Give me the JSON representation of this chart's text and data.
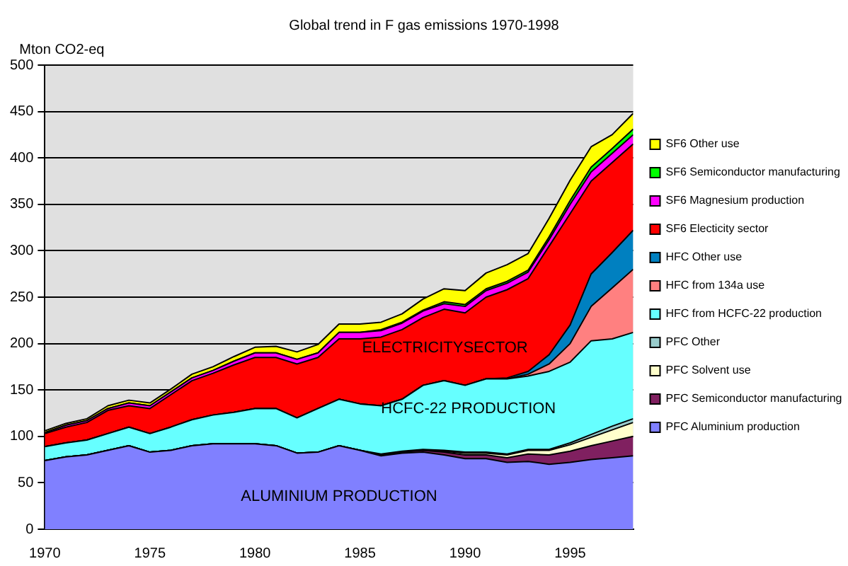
{
  "chart_data": {
    "type": "area",
    "stacked": true,
    "title": "Global trend in F gas emissions 1970-1998",
    "ylabel": "Mton CO2-eq",
    "x": [
      1970,
      1971,
      1972,
      1973,
      1974,
      1975,
      1976,
      1977,
      1978,
      1979,
      1980,
      1981,
      1982,
      1983,
      1984,
      1985,
      1986,
      1987,
      1988,
      1989,
      1990,
      1991,
      1992,
      1993,
      1994,
      1995,
      1996,
      1997,
      1998
    ],
    "xlim": [
      1970,
      1998
    ],
    "xticks": [
      1970,
      1975,
      1980,
      1985,
      1990,
      1995
    ],
    "ylim": [
      0,
      500
    ],
    "yticks": [
      0,
      50,
      100,
      150,
      200,
      250,
      300,
      350,
      400,
      450,
      500
    ],
    "grid": "y",
    "legend": "right",
    "series": [
      {
        "name": "PFC Aluminium production",
        "color": "#8080ff",
        "values": [
          74,
          78,
          80,
          85,
          90,
          83,
          85,
          90,
          92,
          92,
          92,
          90,
          82,
          83,
          90,
          85,
          79,
          82,
          83,
          80,
          76,
          76,
          72,
          73,
          70,
          72,
          75,
          77,
          79
        ]
      },
      {
        "name": "PFC Semiconductor manufacturing",
        "color": "#802060",
        "values": [
          0,
          0,
          0,
          0,
          0,
          0,
          0,
          0,
          0,
          0,
          0,
          0,
          0,
          0,
          0,
          0,
          1,
          1,
          2,
          3,
          4,
          4,
          5,
          8,
          10,
          12,
          15,
          18,
          21
        ]
      },
      {
        "name": "PFC Solvent use",
        "color": "#ffffcc",
        "values": [
          0,
          0,
          0,
          0,
          0,
          0,
          0,
          0,
          0,
          0,
          0,
          0,
          0,
          0,
          0,
          0,
          0,
          0,
          0,
          1,
          2,
          2,
          3,
          4,
          5,
          7,
          9,
          12,
          15
        ]
      },
      {
        "name": "PFC Other",
        "color": "#99cccc",
        "values": [
          0,
          0,
          0,
          0,
          0,
          0,
          0,
          0,
          0,
          0,
          0,
          0,
          0,
          0,
          0,
          0,
          1,
          1,
          1,
          1,
          1,
          1,
          1,
          1,
          1,
          2,
          3,
          4,
          4
        ]
      },
      {
        "name": "HFC from HCFC-22 production",
        "color": "#66ffff",
        "values": [
          15,
          15,
          16,
          18,
          20,
          20,
          25,
          28,
          31,
          34,
          38,
          40,
          38,
          47,
          50,
          50,
          52,
          56,
          69,
          75,
          72,
          79,
          81,
          79,
          84,
          87,
          101,
          94,
          93
        ]
      },
      {
        "name": "HFC from 134a use",
        "color": "#ff8080",
        "values": [
          0,
          0,
          0,
          0,
          0,
          0,
          0,
          0,
          0,
          0,
          0,
          0,
          0,
          0,
          0,
          0,
          0,
          0,
          0,
          0,
          0,
          0,
          0,
          2,
          8,
          20,
          37,
          55,
          68
        ]
      },
      {
        "name": "HFC Other use",
        "color": "#0080c0",
        "values": [
          0,
          0,
          0,
          0,
          0,
          0,
          0,
          0,
          0,
          0,
          0,
          0,
          0,
          0,
          0,
          0,
          0,
          0,
          0,
          0,
          0,
          0,
          1,
          3,
          10,
          20,
          35,
          38,
          42
        ]
      },
      {
        "name": "SF6 Electicity sector",
        "color": "#ff0000",
        "values": [
          14,
          17,
          19,
          25,
          23,
          27,
          35,
          42,
          45,
          51,
          55,
          55,
          58,
          55,
          65,
          70,
          74,
          75,
          73,
          77,
          78,
          88,
          95,
          100,
          117,
          120,
          100,
          97,
          93
        ]
      },
      {
        "name": "SF6 Magnesium production",
        "color": "#ff00ff",
        "values": [
          1,
          2,
          2,
          2,
          3,
          3,
          3,
          3,
          3,
          4,
          5,
          5,
          5,
          5,
          7,
          7,
          7,
          7,
          7,
          6,
          7,
          7,
          7,
          7,
          7,
          10,
          10,
          10,
          10
        ]
      },
      {
        "name": "SF6 Semiconductor manufacturing",
        "color": "#00ff00",
        "values": [
          0,
          0,
          0,
          0,
          0,
          0,
          0,
          0,
          0,
          0,
          0,
          0,
          0,
          0,
          0,
          0,
          1,
          1,
          1,
          2,
          2,
          2,
          2,
          2,
          3,
          4,
          5,
          5,
          6
        ]
      },
      {
        "name": "SF6 Other use",
        "color": "#ffff00",
        "values": [
          2,
          2,
          2,
          3,
          3,
          3,
          3,
          4,
          4,
          5,
          6,
          7,
          8,
          9,
          9,
          9,
          8,
          9,
          12,
          14,
          15,
          17,
          18,
          18,
          20,
          22,
          22,
          15,
          17
        ]
      }
    ],
    "annotations": [
      "ALUMINIUM PRODUCTION",
      "HCFC-22 PRODUCTION",
      "ELECTRICITYSECTOR"
    ]
  }
}
